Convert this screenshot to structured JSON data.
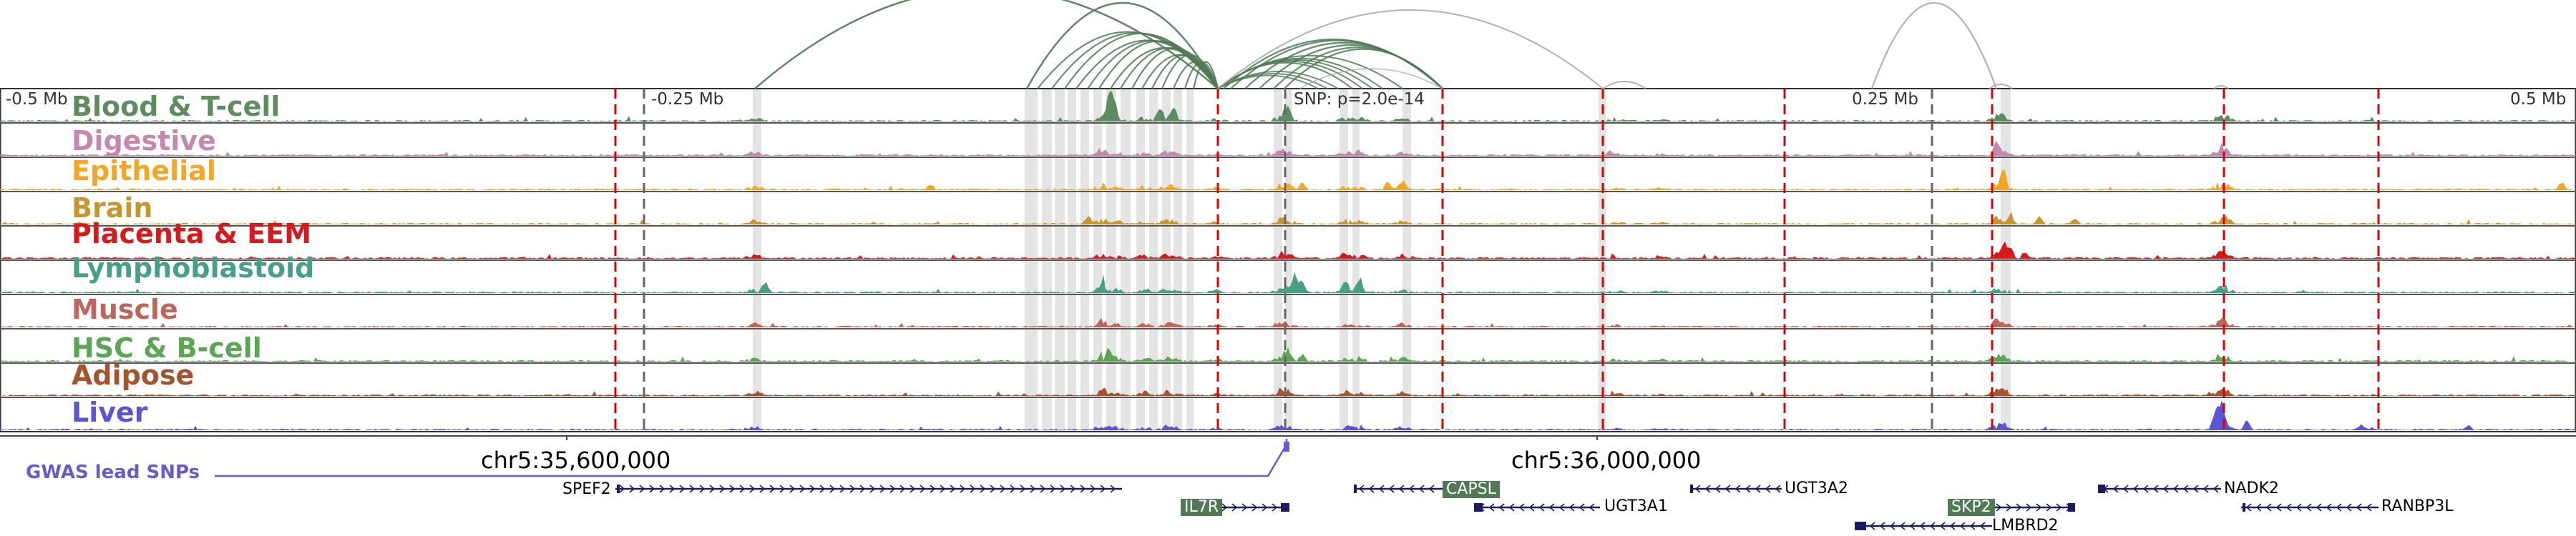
{
  "browser": {
    "axis_labels": [
      "-0.5 Mb",
      "-0.25 Mb",
      "SNP: p=2.0e-14",
      "0.25 Mb",
      "0.5 Mb"
    ],
    "coordinate_labels": [
      "chr5:35,600,000",
      "chr5:36,000,000"
    ],
    "gwas_track_label": "GWAS lead SNPs"
  },
  "tracks": [
    {
      "name": "Blood & T-cell",
      "color": "#5e8c61"
    },
    {
      "name": "Digestive",
      "color": "#c488b0"
    },
    {
      "name": "Epithelial",
      "color": "#f5a623"
    },
    {
      "name": "Brain",
      "color": "#c8962e"
    },
    {
      "name": "Placenta & EEM",
      "color": "#d7191c"
    },
    {
      "name": "Lymphoblastoid",
      "color": "#45a085"
    },
    {
      "name": "Muscle",
      "color": "#c0655a"
    },
    {
      "name": "HSC & B-cell",
      "color": "#5aa652"
    },
    {
      "name": "Adipose",
      "color": "#a5542e"
    },
    {
      "name": "Liver",
      "color": "#5a55d8"
    }
  ],
  "genes": [
    {
      "name": "SPEF2",
      "highlighted": false
    },
    {
      "name": "IL7R",
      "highlighted": true
    },
    {
      "name": "CAPSL",
      "highlighted": true
    },
    {
      "name": "UGT3A1",
      "highlighted": false
    },
    {
      "name": "UGT3A2",
      "highlighted": false
    },
    {
      "name": "SKP2",
      "highlighted": true
    },
    {
      "name": "LMBRD2",
      "highlighted": false
    },
    {
      "name": "NADK2",
      "highlighted": false
    },
    {
      "name": "RANBP3L",
      "highlighted": false
    }
  ],
  "colors": {
    "arc": "#4f7a53",
    "arc_gray": "#aaaaaa",
    "dashed_red": "#dd0000",
    "highlight_band": "#e4e4e4",
    "gwas": "#6a5acd",
    "gene": "#1a1a60"
  }
}
